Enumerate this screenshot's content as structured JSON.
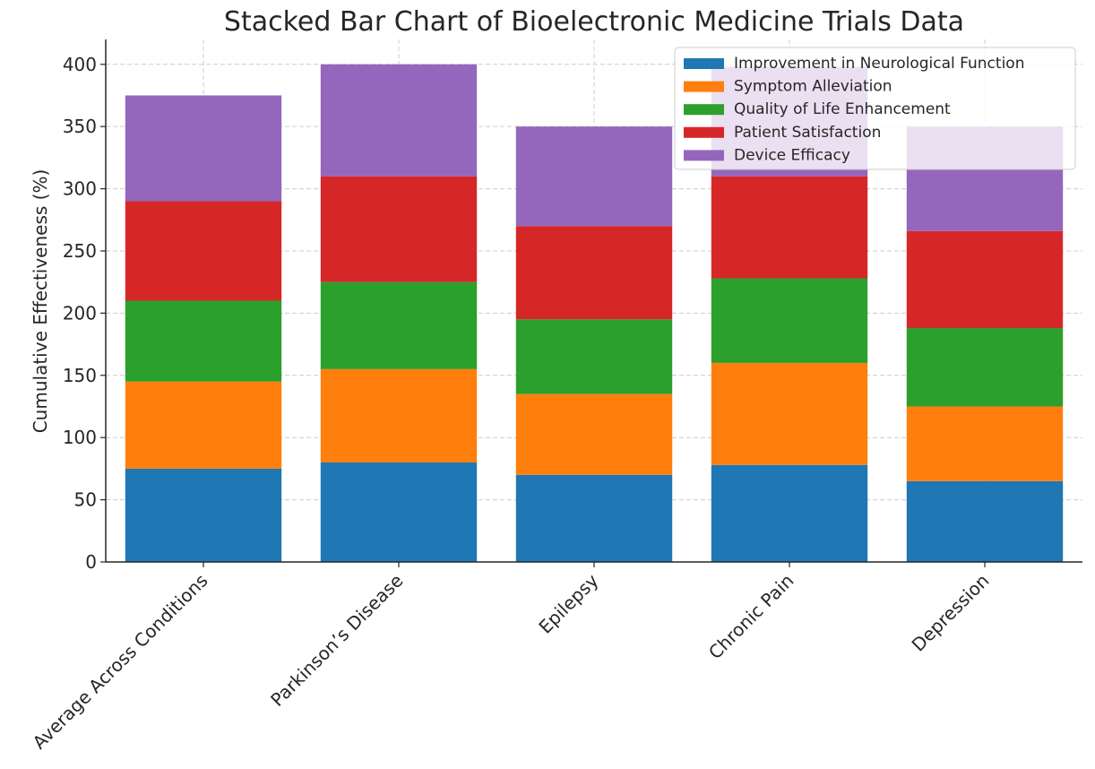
{
  "chart_data": {
    "type": "bar",
    "stacked": true,
    "title": "Stacked Bar Chart of Bioelectronic Medicine Trials Data",
    "xlabel": "",
    "ylabel": "Cumulative Effectiveness (%)",
    "ylim": [
      0,
      420
    ],
    "yticks": [
      0,
      50,
      100,
      150,
      200,
      250,
      300,
      350,
      400
    ],
    "grid": true,
    "legend_position": "top-right",
    "categories": [
      "Average Across Conditions",
      "Parkinson’s Disease",
      "Epilepsy",
      "Chronic Pain",
      "Depression"
    ],
    "series": [
      {
        "name": "Improvement in Neurological Function",
        "color": "#1f77b4",
        "values": [
          75,
          80,
          70,
          78,
          65
        ]
      },
      {
        "name": "Symptom Alleviation",
        "color": "#ff7f0e",
        "values": [
          70,
          75,
          65,
          82,
          60
        ]
      },
      {
        "name": "Quality of Life Enhancement",
        "color": "#2ca02c",
        "values": [
          65,
          70,
          60,
          68,
          63
        ]
      },
      {
        "name": "Patient Satisfaction",
        "color": "#d62728",
        "values": [
          80,
          85,
          75,
          82,
          78
        ]
      },
      {
        "name": "Device Efficacy",
        "color": "#9467bd",
        "values": [
          85,
          90,
          80,
          88,
          84
        ]
      }
    ]
  }
}
